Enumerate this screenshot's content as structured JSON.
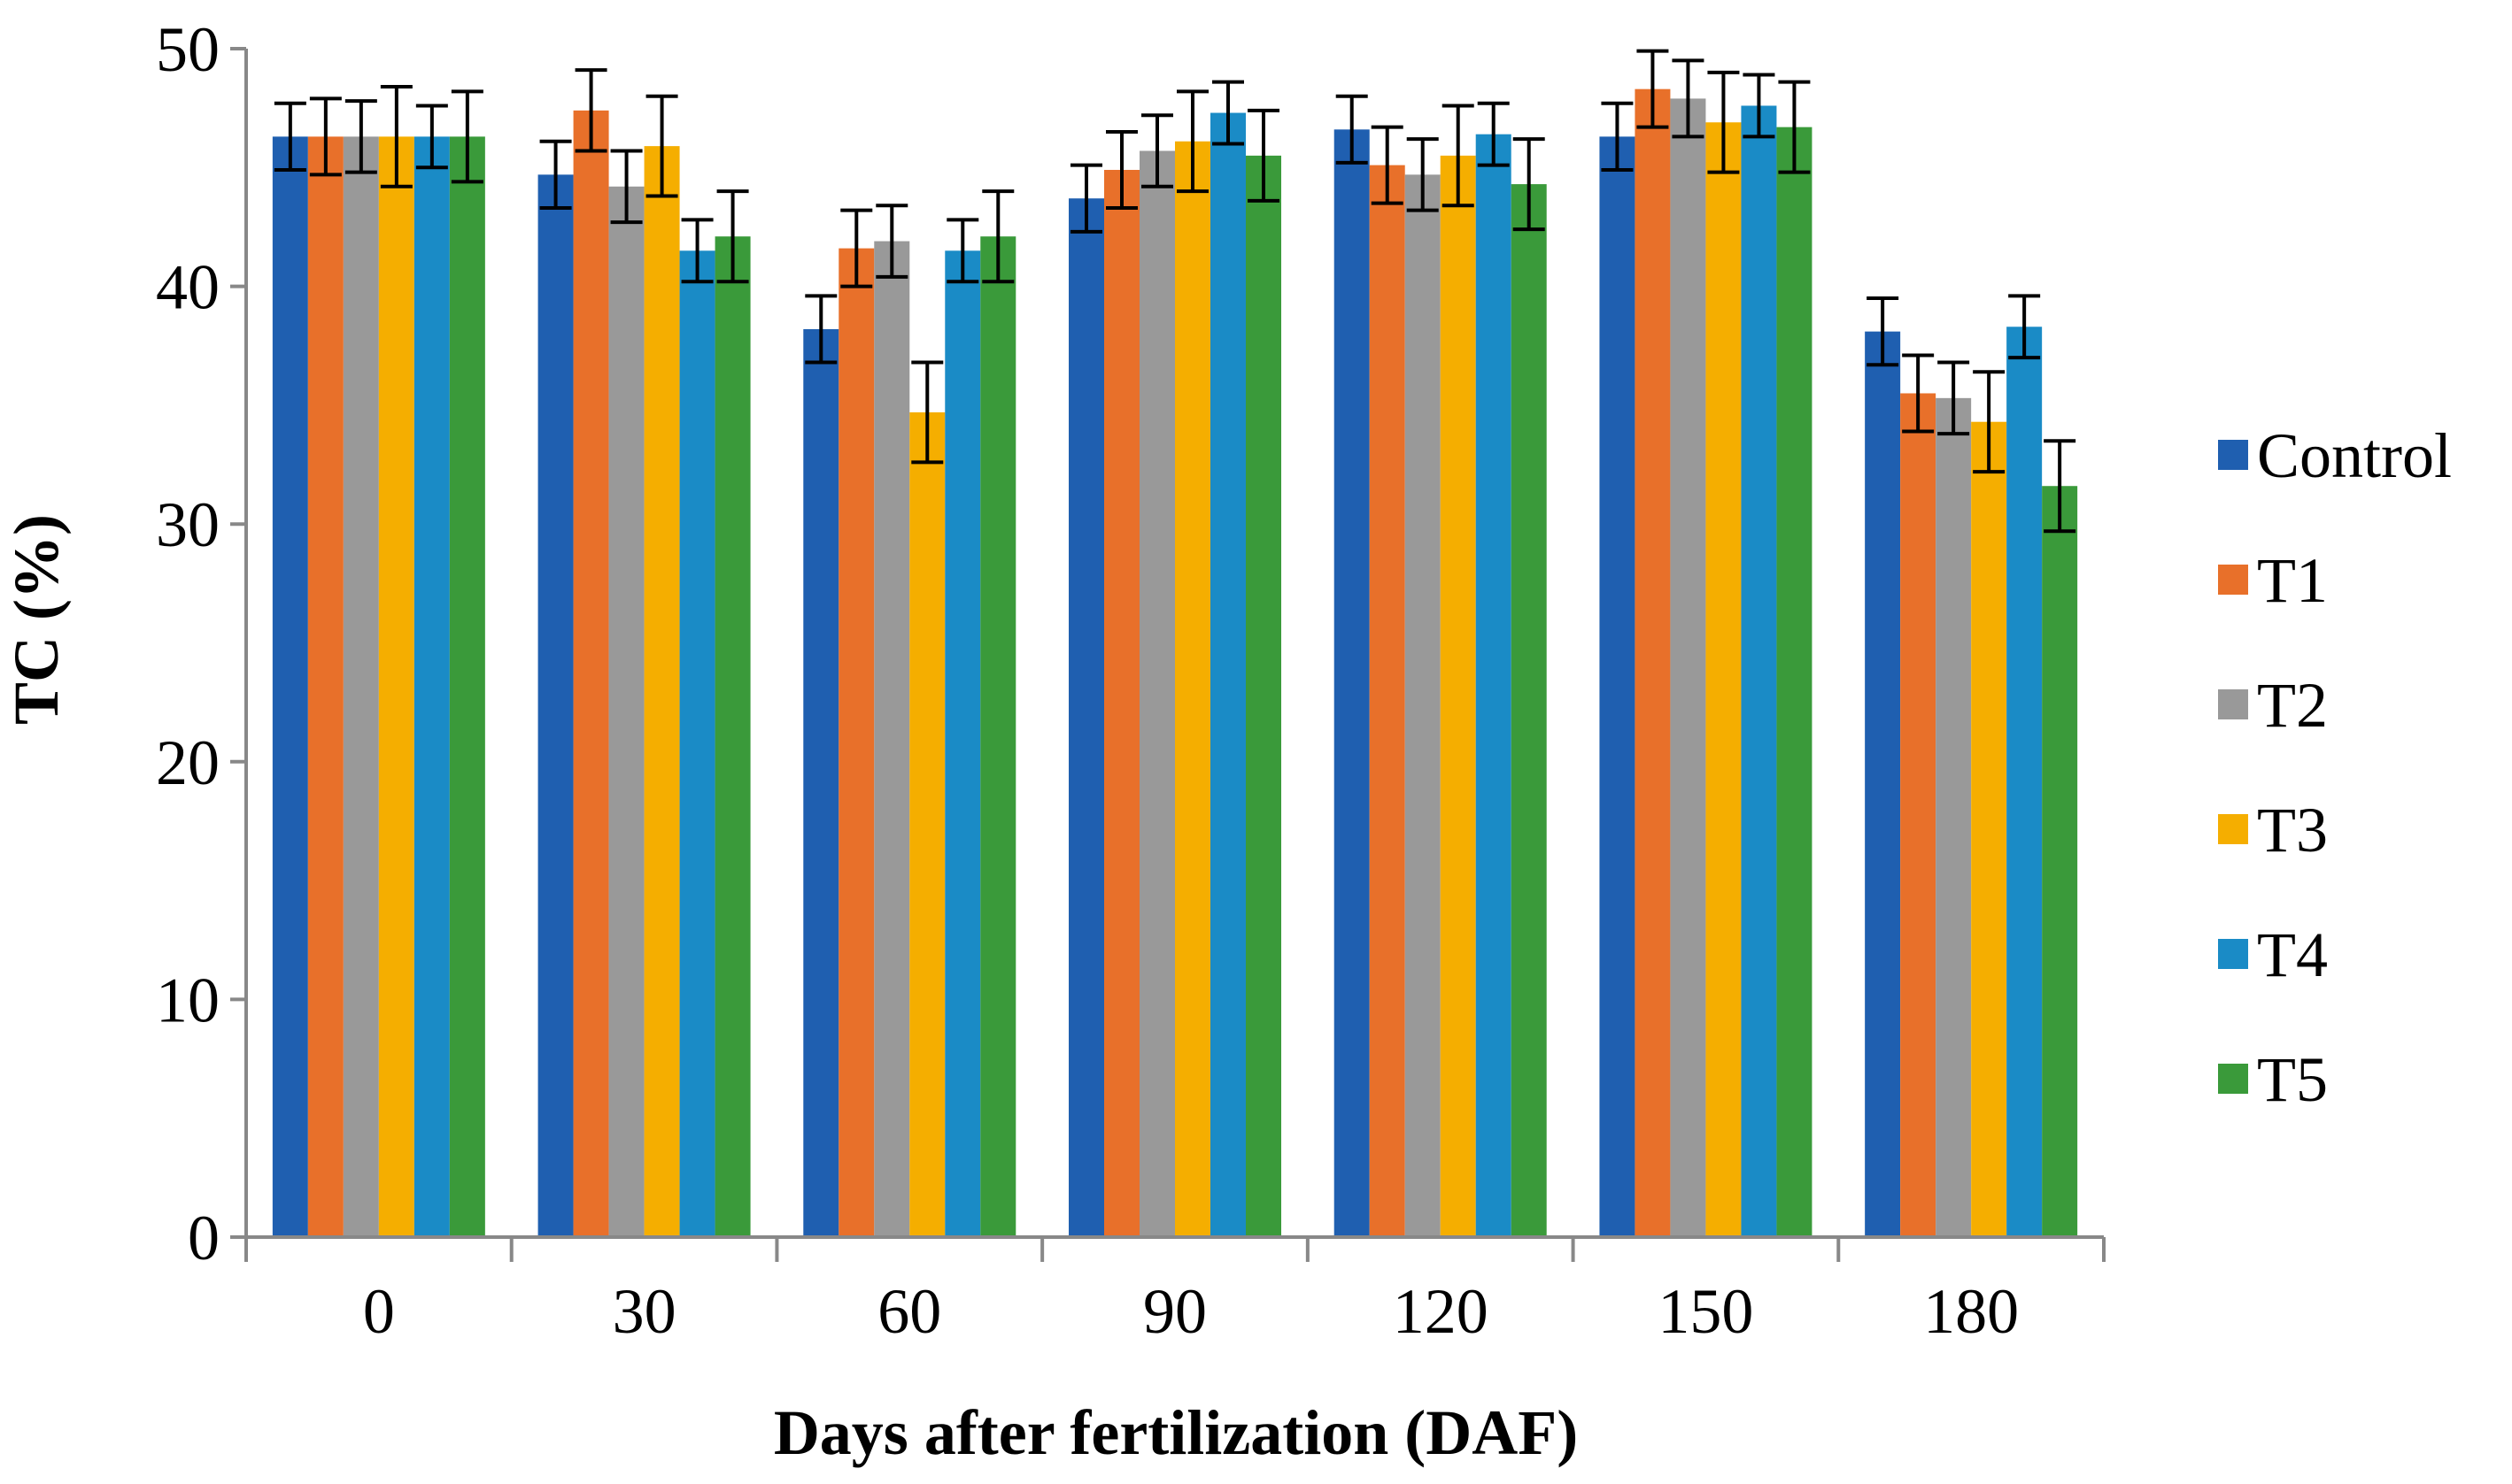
{
  "chart_data": {
    "type": "bar",
    "title": "",
    "xlabel": "Days after fertilization (DAF)",
    "ylabel": "TC (%)",
    "ylim": [
      0,
      50
    ],
    "yticks": [
      0,
      10,
      20,
      30,
      40,
      50
    ],
    "categories": [
      "0",
      "30",
      "60",
      "90",
      "120",
      "150",
      "180"
    ],
    "legend_position": "right",
    "grid": false,
    "error_bars": true,
    "series": [
      {
        "name": "Control",
        "color": "#1F5FB0",
        "values": [
          46.3,
          44.7,
          38.2,
          43.7,
          46.6,
          46.3,
          38.1
        ],
        "errors": [
          1.4,
          1.4,
          1.4,
          1.4,
          1.4,
          1.4,
          1.4
        ]
      },
      {
        "name": "T1",
        "color": "#E8702A",
        "values": [
          46.3,
          47.4,
          41.6,
          44.9,
          45.1,
          48.3,
          35.5
        ],
        "errors": [
          1.6,
          1.7,
          1.6,
          1.6,
          1.6,
          1.6,
          1.6
        ]
      },
      {
        "name": "T2",
        "color": "#999999",
        "values": [
          46.3,
          44.2,
          41.9,
          45.7,
          44.7,
          47.9,
          35.3
        ],
        "errors": [
          1.5,
          1.5,
          1.5,
          1.5,
          1.5,
          1.6,
          1.5
        ]
      },
      {
        "name": "T3",
        "color": "#F5AE00",
        "values": [
          46.3,
          45.9,
          34.7,
          46.1,
          45.5,
          46.9,
          34.3
        ],
        "errors": [
          2.1,
          2.1,
          2.1,
          2.1,
          2.1,
          2.1,
          2.1
        ]
      },
      {
        "name": "T4",
        "color": "#1A8BC6",
        "values": [
          46.3,
          41.5,
          41.5,
          47.3,
          46.4,
          47.6,
          38.3
        ],
        "errors": [
          1.3,
          1.3,
          1.3,
          1.3,
          1.3,
          1.3,
          1.3
        ]
      },
      {
        "name": "T5",
        "color": "#3A9A3A",
        "values": [
          46.3,
          42.1,
          42.1,
          45.5,
          44.3,
          46.7,
          31.6
        ],
        "errors": [
          1.9,
          1.9,
          1.9,
          1.9,
          1.9,
          1.9,
          1.9
        ]
      }
    ]
  },
  "colors": {
    "axis": "#888888",
    "error_bar": "#000000"
  }
}
